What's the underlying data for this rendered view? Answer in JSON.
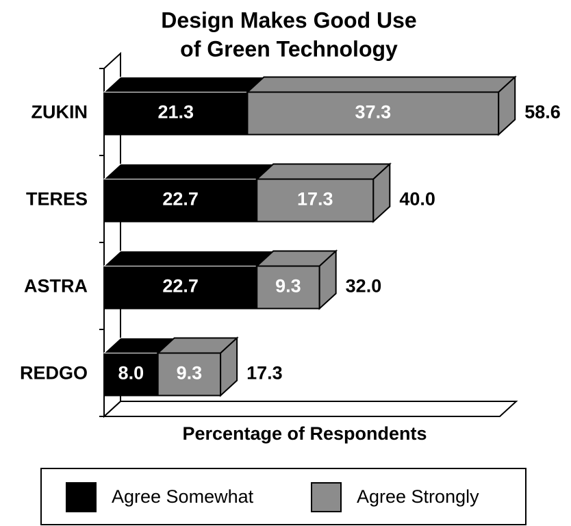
{
  "chart_data": {
    "type": "stacked-bar-3d",
    "title": "Design Makes Good Use of Green Technology",
    "title_lines": [
      "Design Makes Good Use",
      "of Green Technology"
    ],
    "x_label": "Percentage of Respondents",
    "categories": [
      "ZUKIN",
      "TERES",
      "ASTRA",
      "REDGO"
    ],
    "series": [
      {
        "name": "Agree Somewhat",
        "color": "#000000",
        "values": [
          21.3,
          22.7,
          22.7,
          8.0
        ],
        "value_labels": [
          "21.3",
          "22.7",
          "22.7",
          "8.0"
        ]
      },
      {
        "name": "Agree Strongly",
        "color": "#8c8c8c",
        "values": [
          37.3,
          17.3,
          9.3,
          9.3
        ],
        "value_labels": [
          "37.3",
          "17.3",
          "9.3",
          "9.3"
        ]
      }
    ],
    "totals": [
      58.6,
      40.0,
      32.0,
      17.3
    ],
    "total_labels": [
      "58.6",
      "40.0",
      "32.0",
      "17.3"
    ],
    "xlim": [
      0,
      60
    ],
    "legend": "bottom"
  }
}
